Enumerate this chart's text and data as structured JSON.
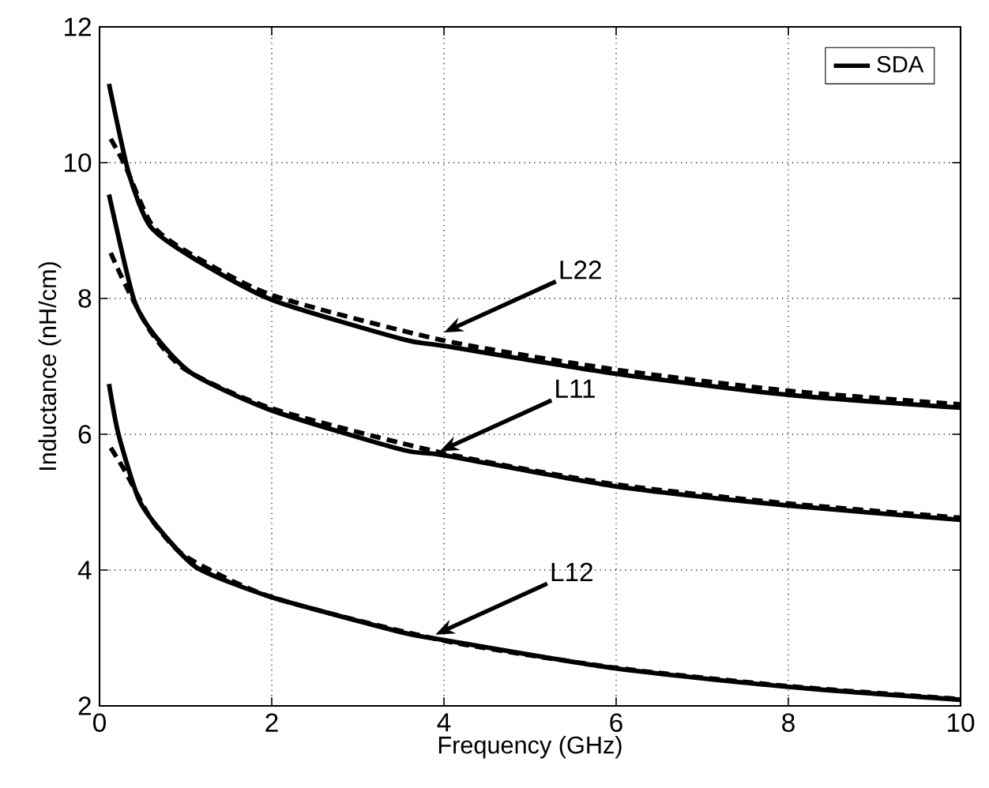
{
  "chart_data": {
    "type": "line",
    "xlabel": "Frequency (GHz)",
    "ylabel": "Inductance (nH/cm)",
    "xlim": [
      0,
      10
    ],
    "ylim": [
      2,
      12
    ],
    "xticks": [
      0,
      2,
      4,
      6,
      8,
      10
    ],
    "yticks": [
      2,
      4,
      6,
      8,
      10,
      12
    ],
    "grid": true,
    "legend": "top right",
    "series": [
      {
        "name": "SDA",
        "color": "#000000",
        "line_style": "solid",
        "x": [
          0.11,
          0.34,
          0.59,
          1.08,
          2,
          3.52,
          4,
          6,
          8,
          10
        ],
        "values": [
          11.16,
          9.84,
          9.06,
          8.6,
          7.98,
          7.4,
          7.3,
          6.89,
          6.58,
          6.39
        ]
      },
      {
        "color": "#000000",
        "line_style": "dashed",
        "x": [
          0.13,
          0.3,
          0.6,
          1,
          2,
          4,
          6,
          8,
          10
        ],
        "values": [
          10.35,
          9.95,
          9.1,
          8.7,
          8.05,
          7.38,
          6.95,
          6.64,
          6.44
        ]
      },
      {
        "color": "#000000",
        "line_style": "solid",
        "x": [
          0.11,
          0.4,
          0.65,
          1.08,
          2,
          3.52,
          4,
          6,
          8,
          10
        ],
        "values": [
          9.53,
          7.98,
          7.44,
          6.89,
          6.35,
          5.77,
          5.69,
          5.23,
          4.95,
          4.74
        ]
      },
      {
        "color": "#000000",
        "line_style": "dashed",
        "x": [
          0.13,
          0.3,
          0.6,
          1,
          2,
          4,
          6,
          8,
          10
        ],
        "values": [
          8.67,
          8.2,
          7.5,
          6.95,
          6.38,
          5.72,
          5.26,
          4.98,
          4.77
        ]
      },
      {
        "color": "#000000",
        "line_style": "solid",
        "x": [
          0.11,
          0.22,
          0.46,
          0.77,
          1.15,
          2,
          3.52,
          4,
          6,
          8,
          10
        ],
        "values": [
          6.74,
          6.0,
          5.03,
          4.49,
          4.02,
          3.6,
          3.08,
          2.97,
          2.55,
          2.28,
          2.09
        ]
      },
      {
        "color": "#000000",
        "line_style": "dashed",
        "x": [
          0.13,
          0.3,
          0.6,
          1,
          2,
          4,
          6,
          8,
          10
        ],
        "values": [
          5.8,
          5.45,
          4.75,
          4.2,
          3.6,
          2.96,
          2.56,
          2.29,
          2.1
        ]
      }
    ],
    "annotations": [
      {
        "text": "L22",
        "x": 4,
        "y": 7.5
      },
      {
        "text": "L11",
        "x": 3.95,
        "y": 5.75
      },
      {
        "text": "L12",
        "x": 3.9,
        "y": 3.05
      }
    ]
  }
}
